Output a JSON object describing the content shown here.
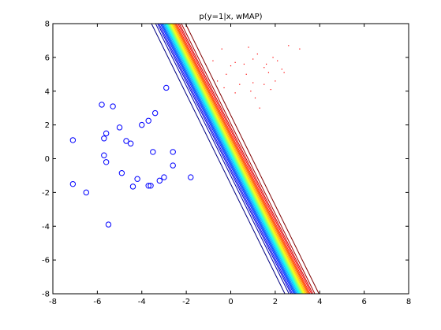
{
  "chart_data": {
    "type": "scatter",
    "title": "p(y=1|x, wMAP)",
    "xlabel": "",
    "ylabel": "",
    "xlim": [
      -8,
      8
    ],
    "ylim": [
      -8,
      8
    ],
    "xticks": [
      -8,
      -6,
      -4,
      -2,
      0,
      2,
      4,
      6,
      8
    ],
    "yticks": [
      -8,
      -6,
      -4,
      -2,
      0,
      2,
      4,
      6,
      8
    ],
    "xtick_labels": [
      "-8",
      "-6",
      "-4",
      "-2",
      "0",
      "2",
      "4",
      "6",
      "8"
    ],
    "ytick_labels": [
      "-8",
      "-6",
      "-4",
      "-2",
      "0",
      "2",
      "4",
      "6",
      "8"
    ],
    "grid": false,
    "legend": "none",
    "series": [
      {
        "marker": "circle",
        "color": "#0000ff",
        "points": [
          [
            -7.1,
            1.1
          ],
          [
            -7.1,
            -1.5
          ],
          [
            -6.5,
            -2.0
          ],
          [
            -5.8,
            3.2
          ],
          [
            -5.3,
            3.1
          ],
          [
            -5.6,
            1.5
          ],
          [
            -5.7,
            1.2
          ],
          [
            -5.7,
            0.2
          ],
          [
            -5.6,
            -0.2
          ],
          [
            -5.5,
            -3.9
          ],
          [
            -5.0,
            1.85
          ],
          [
            -4.7,
            1.05
          ],
          [
            -4.5,
            0.9
          ],
          [
            -4.9,
            -0.85
          ],
          [
            -4.2,
            -1.2
          ],
          [
            -4.4,
            -1.65
          ],
          [
            -4.0,
            2.0
          ],
          [
            -3.7,
            2.25
          ],
          [
            -3.4,
            2.7
          ],
          [
            -3.5,
            0.4
          ],
          [
            -3.7,
            -1.6
          ],
          [
            -3.6,
            -1.6
          ],
          [
            -3.2,
            -1.3
          ],
          [
            -3.0,
            -1.1
          ],
          [
            -2.6,
            0.4
          ],
          [
            -2.6,
            -0.4
          ],
          [
            -2.9,
            4.2
          ],
          [
            -1.8,
            -1.1
          ]
        ]
      },
      {
        "marker": "dot",
        "color": "#ff0000",
        "points": [
          [
            -0.8,
            5.8
          ],
          [
            -0.4,
            6.5
          ],
          [
            0.2,
            5.7
          ],
          [
            0.7,
            5.0
          ],
          [
            1.0,
            5.9
          ],
          [
            1.2,
            6.2
          ],
          [
            1.5,
            5.4
          ],
          [
            1.7,
            5.1
          ],
          [
            2.1,
            5.8
          ],
          [
            2.6,
            6.7
          ],
          [
            3.1,
            6.5
          ],
          [
            -0.2,
            5.0
          ],
          [
            0.4,
            4.4
          ],
          [
            0.9,
            4.0
          ],
          [
            1.1,
            3.6
          ],
          [
            1.5,
            4.4
          ],
          [
            2.0,
            4.6
          ],
          [
            -0.6,
            4.6
          ],
          [
            0.6,
            5.6
          ],
          [
            1.3,
            3.0
          ],
          [
            0.2,
            3.9
          ],
          [
            1.6,
            5.6
          ],
          [
            2.3,
            5.3
          ],
          [
            -0.3,
            4.2
          ],
          [
            0.8,
            6.6
          ],
          [
            1.9,
            6.0
          ],
          [
            2.4,
            5.1
          ],
          [
            0.0,
            5.5
          ],
          [
            1.0,
            4.5
          ],
          [
            1.8,
            4.1
          ]
        ]
      }
    ],
    "contours": {
      "levels": [
        0.01,
        0.03,
        0.05,
        0.07,
        0.1,
        0.13,
        0.16,
        0.2,
        0.25,
        0.3,
        0.35,
        0.4,
        0.45,
        0.5,
        0.55,
        0.6,
        0.65,
        0.7,
        0.75,
        0.8,
        0.84,
        0.87,
        0.9,
        0.93,
        0.95,
        0.97,
        0.99
      ],
      "center_line": {
        "x_at_y_max": -2.8,
        "x_at_y_min": 3.2
      },
      "logit_slope_per_unit_x": 6.0,
      "colormap": "jet"
    }
  }
}
